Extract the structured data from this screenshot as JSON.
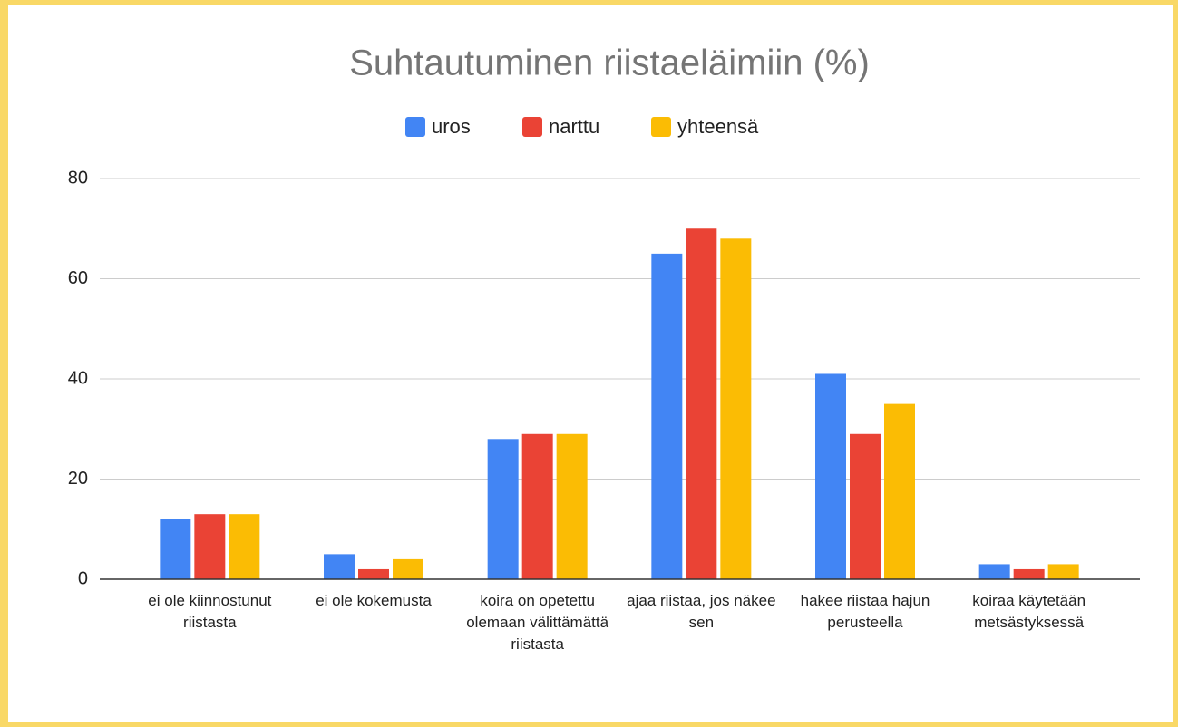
{
  "chart_data": {
    "type": "bar",
    "title": "Suhtautuminen riistaeläimiin (%)",
    "categories": [
      "ei ole kiinnostunut riistasta",
      "ei ole kokemusta",
      "koira on opetettu olemaan välittämättä riistasta",
      "ajaa riistaa, jos näkee sen",
      "hakee riistaa hajun perusteella",
      "koiraa käytetään metsästyksessä"
    ],
    "series": [
      {
        "name": "uros",
        "color": "#4285f4",
        "values": [
          12,
          5,
          28,
          65,
          41,
          3
        ]
      },
      {
        "name": "narttu",
        "color": "#ea4335",
        "values": [
          13,
          2,
          29,
          70,
          29,
          2
        ]
      },
      {
        "name": "yhteensä",
        "color": "#fbbc04",
        "values": [
          13,
          4,
          29,
          68,
          35,
          3
        ]
      }
    ],
    "ylim": [
      0,
      80
    ],
    "yticks": [
      0,
      20,
      40,
      60,
      80
    ],
    "grid": true,
    "legend": "top"
  }
}
